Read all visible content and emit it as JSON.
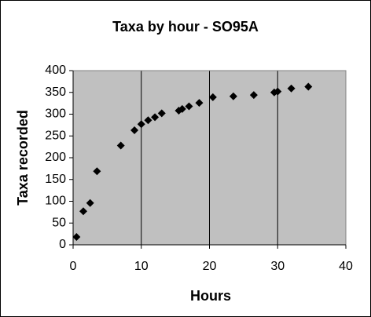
{
  "chart_data": {
    "type": "scatter",
    "title": "Taxa by hour - SO95A",
    "x_label": "Hours",
    "y_label": "Taxa recorded",
    "series": [
      {
        "color": "#000000",
        "x": [
          0.5,
          1.5,
          2.5,
          3.5,
          7,
          9,
          10,
          11,
          12,
          13,
          15.5,
          16,
          17,
          18.5,
          20.5,
          23.5,
          26.5,
          29.5,
          30,
          32,
          34.5
        ],
        "values": [
          18,
          77,
          96,
          169,
          228,
          263,
          277,
          286,
          293,
          302,
          308,
          312,
          318,
          326,
          339,
          341,
          344,
          350,
          352,
          359,
          363
        ]
      }
    ],
    "xlim": [
      0,
      40
    ],
    "xticks": [
      0,
      10,
      20,
      30,
      40
    ],
    "ylim": [
      0,
      400
    ],
    "yticks": [
      0,
      50,
      100,
      150,
      200,
      250,
      300,
      350,
      400
    ],
    "grid": "x",
    "plot_background": "#c0c0c0"
  }
}
